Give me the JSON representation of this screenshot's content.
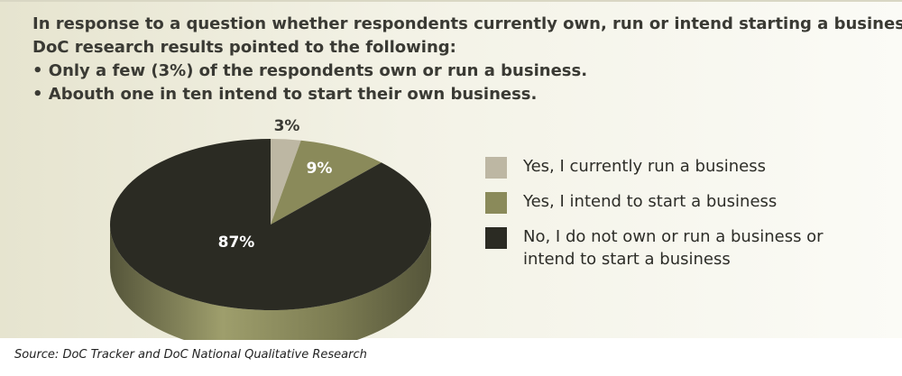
{
  "heading": {
    "lines": [
      "In response to a question whether respondents currently own, run or intend starting a business,",
      "DoC research results pointed to the following:",
      "• Only a few (3%) of the respondents own or run a business.",
      "• Abouth one in ten intend to start their own business."
    ]
  },
  "chart_data": {
    "type": "pie",
    "style": "3d",
    "slices": [
      {
        "label": "Yes, I currently run a business",
        "value": 3,
        "display": "3%",
        "color": "#bdb7a3"
      },
      {
        "label": "Yes, I intend to start a business",
        "value": 9,
        "display": "9%",
        "color": "#8a8a5a"
      },
      {
        "label": "No, I do not own or run a business or intend to start a business",
        "value": 87,
        "display": "87%",
        "color": "#2b2b23"
      }
    ],
    "legend_placement": "right"
  },
  "legend": {
    "items": [
      {
        "lines": [
          "Yes, I currently run a business"
        ],
        "color": "#bdb7a3"
      },
      {
        "lines": [
          "Yes, I intend to start a business"
        ],
        "color": "#8a8a5a"
      },
      {
        "lines": [
          "No, I do not own or run a business or",
          "intend to start a business"
        ],
        "color": "#2b2b23"
      }
    ]
  },
  "source": "Source: DoC Tracker and DoC National Qualitative Research",
  "colors": {
    "side_dark": "#6e6e46",
    "side_light": "#9a9a68",
    "heading_text": "#3a3a34"
  }
}
